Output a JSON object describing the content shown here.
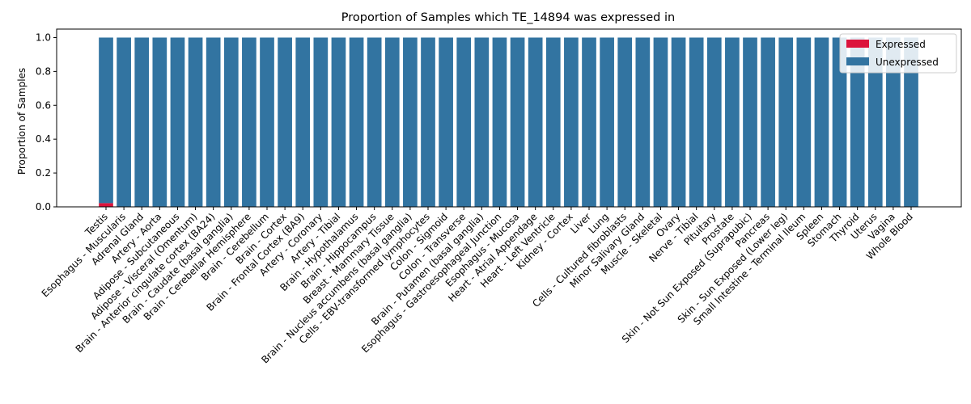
{
  "chart_data": {
    "type": "bar",
    "stacked": true,
    "title": "Proportion of Samples which TE_14894 was expressed in",
    "xlabel": "",
    "ylabel": "Proportion of Samples",
    "ylim": [
      0,
      1.05
    ],
    "yticks": [
      "0.0",
      "0.2",
      "0.4",
      "0.6",
      "0.8",
      "1.0"
    ],
    "legend_position": "top-right",
    "categories": [
      "Testis",
      "Esophagus - Muscularis",
      "Adrenal Gland",
      "Artery - Aorta",
      "Adipose - Subcutaneous",
      "Adipose - Visceral (Omentum)",
      "Brain - Anterior cingulate cortex (BA24)",
      "Brain - Caudate (basal ganglia)",
      "Brain - Cerebellar Hemisphere",
      "Brain - Cerebellum",
      "Brain - Cortex",
      "Brain - Frontal Cortex (BA9)",
      "Artery - Coronary",
      "Artery - Tibial",
      "Brain - Hypothalamus",
      "Brain - Hippocampus",
      "Breast - Mammary Tissue",
      "Brain - Nucleus accumbens (basal ganglia)",
      "Cells - EBV-transformed lymphocytes",
      "Colon - Sigmoid",
      "Colon - Transverse",
      "Brain - Putamen (basal ganglia)",
      "Esophagus - Gastroesophageal Junction",
      "Esophagus - Mucosa",
      "Heart - Atrial Appendage",
      "Heart - Left Ventricle",
      "Kidney - Cortex",
      "Liver",
      "Lung",
      "Cells - Cultured fibroblasts",
      "Minor Salivary Gland",
      "Muscle - Skeletal",
      "Ovary",
      "Nerve - Tibial",
      "Pituitary",
      "Prostate",
      "Skin - Not Sun Exposed (Suprapubic)",
      "Pancreas",
      "Skin - Sun Exposed (Lower leg)",
      "Small Intestine - Terminal Ileum",
      "Spleen",
      "Stomach",
      "Thyroid",
      "Uterus",
      "Vagina",
      "Whole Blood"
    ],
    "series": [
      {
        "name": "Expressed",
        "color": "#dc143c",
        "values": [
          0.022,
          0,
          0,
          0,
          0,
          0,
          0,
          0,
          0,
          0,
          0,
          0,
          0,
          0,
          0,
          0,
          0,
          0,
          0,
          0,
          0,
          0,
          0,
          0,
          0,
          0,
          0,
          0,
          0,
          0,
          0,
          0,
          0,
          0,
          0,
          0,
          0,
          0,
          0,
          0,
          0,
          0,
          0,
          0,
          0,
          0
        ]
      },
      {
        "name": "Unexpressed",
        "color": "#3274a1",
        "values": [
          0.978,
          1,
          1,
          1,
          1,
          1,
          1,
          1,
          1,
          1,
          1,
          1,
          1,
          1,
          1,
          1,
          1,
          1,
          1,
          1,
          1,
          1,
          1,
          1,
          1,
          1,
          1,
          1,
          1,
          1,
          1,
          1,
          1,
          1,
          1,
          1,
          1,
          1,
          1,
          1,
          1,
          1,
          1,
          1,
          1,
          1
        ]
      }
    ]
  }
}
